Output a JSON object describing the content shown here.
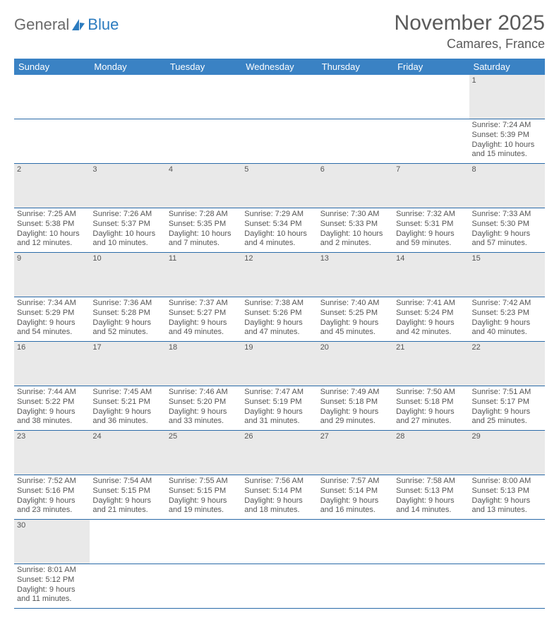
{
  "logo": {
    "text1": "General",
    "text2": "Blue"
  },
  "title": "November 2025",
  "location": "Camares, France",
  "colors": {
    "header_bg": "#3a82c4",
    "header_text": "#ffffff",
    "daynum_bg": "#e9e9e9",
    "border": "#2a6aa8",
    "text": "#555555",
    "logo_gray": "#6a6a6a",
    "logo_blue": "#2b7bbf"
  },
  "weekdays": [
    "Sunday",
    "Monday",
    "Tuesday",
    "Wednesday",
    "Thursday",
    "Friday",
    "Saturday"
  ],
  "weeks": [
    {
      "nums": [
        "",
        "",
        "",
        "",
        "",
        "",
        "1"
      ],
      "cells": [
        "",
        "",
        "",
        "",
        "",
        "",
        "Sunrise: 7:24 AM\nSunset: 5:39 PM\nDaylight: 10 hours and 15 minutes."
      ]
    },
    {
      "nums": [
        "2",
        "3",
        "4",
        "5",
        "6",
        "7",
        "8"
      ],
      "cells": [
        "Sunrise: 7:25 AM\nSunset: 5:38 PM\nDaylight: 10 hours and 12 minutes.",
        "Sunrise: 7:26 AM\nSunset: 5:37 PM\nDaylight: 10 hours and 10 minutes.",
        "Sunrise: 7:28 AM\nSunset: 5:35 PM\nDaylight: 10 hours and 7 minutes.",
        "Sunrise: 7:29 AM\nSunset: 5:34 PM\nDaylight: 10 hours and 4 minutes.",
        "Sunrise: 7:30 AM\nSunset: 5:33 PM\nDaylight: 10 hours and 2 minutes.",
        "Sunrise: 7:32 AM\nSunset: 5:31 PM\nDaylight: 9 hours and 59 minutes.",
        "Sunrise: 7:33 AM\nSunset: 5:30 PM\nDaylight: 9 hours and 57 minutes."
      ]
    },
    {
      "nums": [
        "9",
        "10",
        "11",
        "12",
        "13",
        "14",
        "15"
      ],
      "cells": [
        "Sunrise: 7:34 AM\nSunset: 5:29 PM\nDaylight: 9 hours and 54 minutes.",
        "Sunrise: 7:36 AM\nSunset: 5:28 PM\nDaylight: 9 hours and 52 minutes.",
        "Sunrise: 7:37 AM\nSunset: 5:27 PM\nDaylight: 9 hours and 49 minutes.",
        "Sunrise: 7:38 AM\nSunset: 5:26 PM\nDaylight: 9 hours and 47 minutes.",
        "Sunrise: 7:40 AM\nSunset: 5:25 PM\nDaylight: 9 hours and 45 minutes.",
        "Sunrise: 7:41 AM\nSunset: 5:24 PM\nDaylight: 9 hours and 42 minutes.",
        "Sunrise: 7:42 AM\nSunset: 5:23 PM\nDaylight: 9 hours and 40 minutes."
      ]
    },
    {
      "nums": [
        "16",
        "17",
        "18",
        "19",
        "20",
        "21",
        "22"
      ],
      "cells": [
        "Sunrise: 7:44 AM\nSunset: 5:22 PM\nDaylight: 9 hours and 38 minutes.",
        "Sunrise: 7:45 AM\nSunset: 5:21 PM\nDaylight: 9 hours and 36 minutes.",
        "Sunrise: 7:46 AM\nSunset: 5:20 PM\nDaylight: 9 hours and 33 minutes.",
        "Sunrise: 7:47 AM\nSunset: 5:19 PM\nDaylight: 9 hours and 31 minutes.",
        "Sunrise: 7:49 AM\nSunset: 5:18 PM\nDaylight: 9 hours and 29 minutes.",
        "Sunrise: 7:50 AM\nSunset: 5:18 PM\nDaylight: 9 hours and 27 minutes.",
        "Sunrise: 7:51 AM\nSunset: 5:17 PM\nDaylight: 9 hours and 25 minutes."
      ]
    },
    {
      "nums": [
        "23",
        "24",
        "25",
        "26",
        "27",
        "28",
        "29"
      ],
      "cells": [
        "Sunrise: 7:52 AM\nSunset: 5:16 PM\nDaylight: 9 hours and 23 minutes.",
        "Sunrise: 7:54 AM\nSunset: 5:15 PM\nDaylight: 9 hours and 21 minutes.",
        "Sunrise: 7:55 AM\nSunset: 5:15 PM\nDaylight: 9 hours and 19 minutes.",
        "Sunrise: 7:56 AM\nSunset: 5:14 PM\nDaylight: 9 hours and 18 minutes.",
        "Sunrise: 7:57 AM\nSunset: 5:14 PM\nDaylight: 9 hours and 16 minutes.",
        "Sunrise: 7:58 AM\nSunset: 5:13 PM\nDaylight: 9 hours and 14 minutes.",
        "Sunrise: 8:00 AM\nSunset: 5:13 PM\nDaylight: 9 hours and 13 minutes."
      ]
    },
    {
      "nums": [
        "30",
        "",
        "",
        "",
        "",
        "",
        ""
      ],
      "cells": [
        "Sunrise: 8:01 AM\nSunset: 5:12 PM\nDaylight: 9 hours and 11 minutes.",
        "",
        "",
        "",
        "",
        "",
        ""
      ]
    }
  ]
}
